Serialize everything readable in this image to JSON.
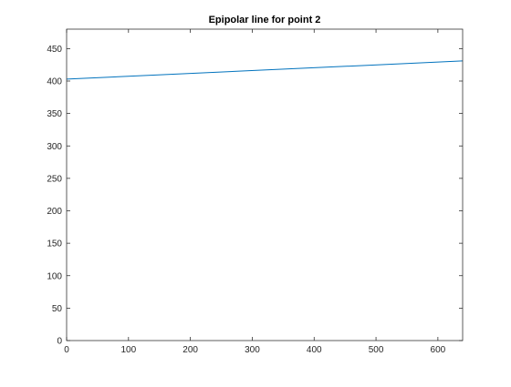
{
  "chart_data": {
    "type": "line",
    "title": "Epipolar line for point 2",
    "xlabel": "",
    "ylabel": "",
    "xlim": [
      0,
      640
    ],
    "ylim": [
      0,
      480
    ],
    "xticks": [
      0,
      100,
      200,
      300,
      400,
      500,
      600
    ],
    "yticks": [
      0,
      50,
      100,
      150,
      200,
      250,
      300,
      350,
      400,
      450
    ],
    "grid": false,
    "series": [
      {
        "color": "#0072bd",
        "x": [
          0,
          640
        ],
        "y": [
          403,
          431
        ]
      }
    ]
  }
}
